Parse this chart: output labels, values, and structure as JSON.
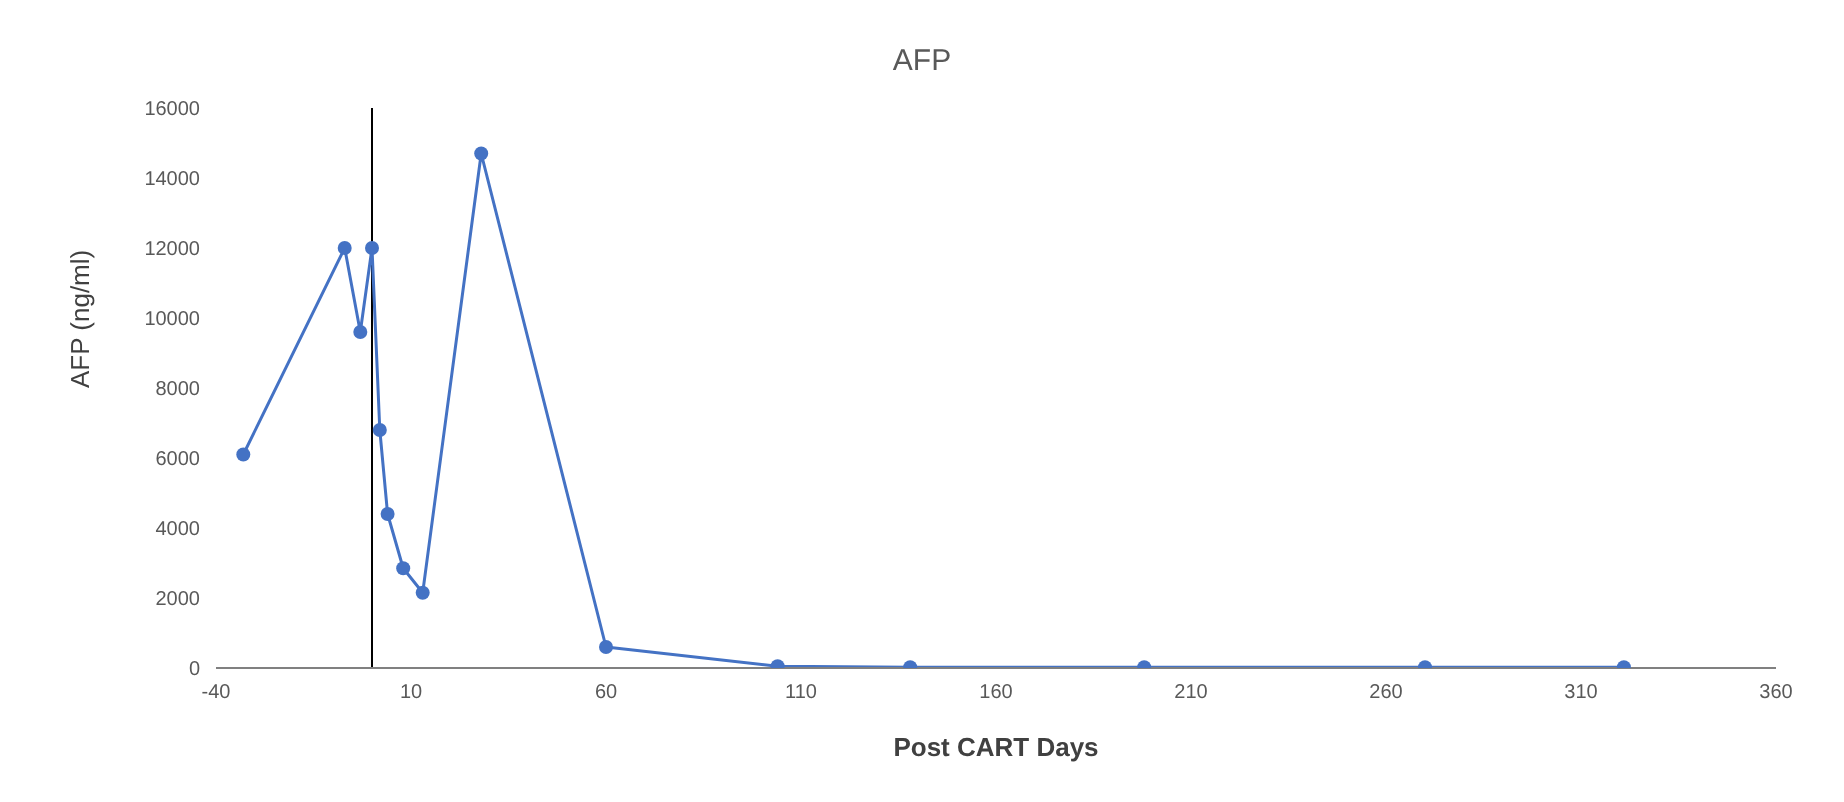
{
  "chart_data": {
    "type": "line",
    "title": "AFP",
    "xlabel": "Post CART Days",
    "ylabel": "AFP (ng/ml)",
    "x": [
      -33,
      -7,
      -3,
      0,
      2,
      4,
      8,
      13,
      28,
      60,
      104,
      138,
      198,
      270,
      321
    ],
    "series": [
      {
        "color": "#4472c4",
        "values": [
          6100,
          12000,
          9600,
          12000,
          6800,
          4400,
          2850,
          2150,
          14700,
          600,
          50,
          20,
          20,
          20,
          20
        ]
      }
    ],
    "xlim": [
      -40,
      360
    ],
    "xticks": [
      -40,
      10,
      60,
      110,
      160,
      210,
      260,
      310,
      360
    ],
    "ylim": [
      0,
      16000
    ],
    "yticks": [
      0,
      2000,
      4000,
      6000,
      8000,
      10000,
      12000,
      14000,
      16000
    ],
    "grid": false,
    "legend": false,
    "marker": "circle",
    "line_style": "solid"
  }
}
